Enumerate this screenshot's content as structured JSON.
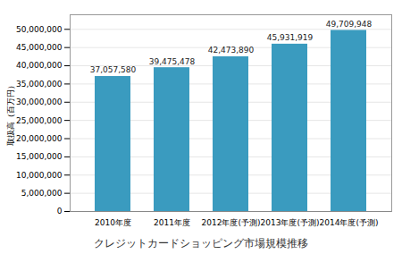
{
  "chart_data": {
    "type": "bar",
    "title": "クレジットカードショッピング市場規模推移",
    "ylabel": "取扱高（百万円）",
    "categories": [
      "2010年度",
      "2011年度",
      "2012年度(予測)",
      "2013年度(予測)",
      "2014年度(予測)"
    ],
    "values": [
      37057580,
      39475478,
      42473890,
      45931919,
      49709948
    ],
    "value_labels": [
      "37,057,580",
      "39,475,478",
      "42,473,890",
      "45,931,919",
      "49,709,948"
    ],
    "data_labels": true,
    "color": "#3a9bbf",
    "ylim": [
      0,
      54000000
    ],
    "yticks": [
      0,
      {
        "value": 5000000,
        "label": "5,000,000"
      },
      {
        "value": 10000000,
        "label": "10,000,000"
      },
      {
        "value": 15000000,
        "label": "15,000,000"
      },
      {
        "value": 20000000,
        "label": "20,000,000"
      },
      {
        "value": 25000000,
        "label": "25,000,000"
      },
      {
        "value": 30000000,
        "label": "30,000,000"
      },
      {
        "value": 35000000,
        "label": "35,000,000"
      },
      {
        "value": 40000000,
        "label": "40,000,000"
      },
      {
        "value": 45000000,
        "label": "45,000,000"
      },
      {
        "value": 50000000,
        "label": "50,000,000"
      }
    ],
    "grid": true
  }
}
